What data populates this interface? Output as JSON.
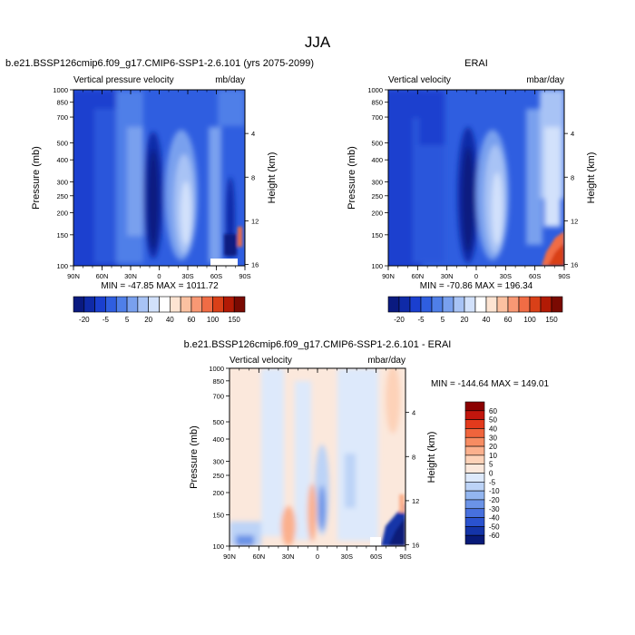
{
  "figure": {
    "title": "JJA"
  },
  "chart_data": [
    {
      "type": "heatmap",
      "title": "b.e21.BSSP126cmip6.f09_g17.CMIP6-SSP1-2.6.101 (yrs 2075-2099)",
      "left_label": "Vertical pressure velocity",
      "right_label": "mb/day",
      "xlabel": "",
      "ylabel": "Pressure (mb)",
      "y2label": "Height (km)",
      "x_ticks": [
        "90N",
        "60N",
        "30N",
        "0",
        "30S",
        "60S",
        "90S"
      ],
      "y_ticks": [
        "100",
        "150",
        "200",
        "250",
        "300",
        "400",
        "500",
        "700",
        "850",
        "1000"
      ],
      "y2_ticks": [
        "16",
        "12",
        "8",
        "4"
      ],
      "xlim": [
        90,
        -90
      ],
      "ylim": [
        1000,
        100
      ],
      "log_scale_y": true,
      "stats": "MIN = -47.85   MAX = 1011.72",
      "colorbar_labels": [
        "-20",
        "-5",
        "5",
        "20",
        "40",
        "60",
        "100",
        "150"
      ]
    },
    {
      "type": "heatmap",
      "title": "ERAI",
      "left_label": "Vertical velocity",
      "right_label": "mbar/day",
      "xlabel": "",
      "ylabel": "Pressure (mb)",
      "y2label": "Height (km)",
      "x_ticks": [
        "90N",
        "60N",
        "30N",
        "0",
        "30S",
        "60S",
        "90S"
      ],
      "y_ticks": [
        "100",
        "150",
        "200",
        "250",
        "300",
        "400",
        "500",
        "700",
        "850",
        "1000"
      ],
      "y2_ticks": [
        "16",
        "12",
        "8",
        "4"
      ],
      "xlim": [
        90,
        -90
      ],
      "ylim": [
        1000,
        100
      ],
      "log_scale_y": true,
      "stats": "MIN = -70.86   MAX = 196.34",
      "colorbar_labels": [
        "-20",
        "-5",
        "5",
        "20",
        "40",
        "60",
        "100",
        "150"
      ]
    },
    {
      "type": "heatmap",
      "title": "b.e21.BSSP126cmip6.f09_g17.CMIP6-SSP1-2.6.101 - ERAI",
      "left_label": "Vertical velocity",
      "right_label": "mbar/day",
      "xlabel": "",
      "ylabel": "Pressure (mb)",
      "y2label": "Height (km)",
      "x_ticks": [
        "90N",
        "60N",
        "30N",
        "0",
        "30S",
        "60S",
        "90S"
      ],
      "y_ticks": [
        "100",
        "150",
        "200",
        "250",
        "300",
        "400",
        "500",
        "700",
        "850",
        "1000"
      ],
      "y2_ticks": [
        "16",
        "12",
        "8",
        "4"
      ],
      "xlim": [
        90,
        -90
      ],
      "ylim": [
        1000,
        100
      ],
      "log_scale_y": true,
      "stats": "MIN = -144.64   MAX = 149.01",
      "colorbar_labels": [
        "60",
        "50",
        "40",
        "30",
        "20",
        "10",
        "5",
        "0",
        "-5",
        "-10",
        "-20",
        "-30",
        "-40",
        "-50",
        "-60"
      ]
    }
  ],
  "colors": {
    "scale": [
      "#0a1a80",
      "#0f2aa8",
      "#1a3fcf",
      "#2f5ee0",
      "#4f7fe8",
      "#79a0ee",
      "#a8c3f5",
      "#d2e1fb",
      "#ffffff",
      "#fde4d2",
      "#fbc1a1",
      "#f89874",
      "#f06c45",
      "#d94018",
      "#b21a05",
      "#7a0a02"
    ],
    "diff_scale": [
      "#8b0000",
      "#c2160d",
      "#e33a1c",
      "#f0643c",
      "#f78c62",
      "#fbb08d",
      "#fdd2b8",
      "#fbe8dc",
      "#dde9fb",
      "#bcd3f7",
      "#93b6f0",
      "#6b93e7",
      "#4770de",
      "#2a52cf",
      "#1434a8",
      "#081a78"
    ]
  }
}
